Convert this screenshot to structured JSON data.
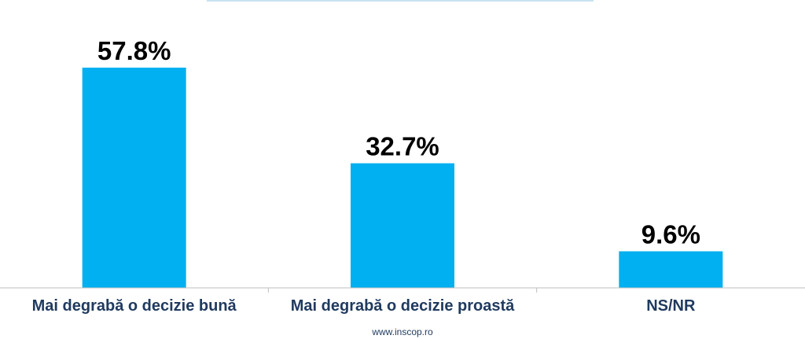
{
  "colors": {
    "bar": "#00b0f0",
    "category_text": "#1f3a5f",
    "axis": "#bfbfbf",
    "top_rule": "#c6e3f2"
  },
  "chart_data": {
    "type": "bar",
    "categories": [
      "Mai degrabă o decizie bună",
      "Mai degrabă o decizie proastă",
      "NS/NR"
    ],
    "values": [
      57.8,
      32.7,
      9.6
    ],
    "value_labels": [
      "57.8%",
      "32.7%",
      "9.6%"
    ],
    "ylim": [
      0,
      60
    ],
    "grid": false,
    "legend": "none"
  },
  "footer": {
    "text": "www.inscop.ro"
  }
}
